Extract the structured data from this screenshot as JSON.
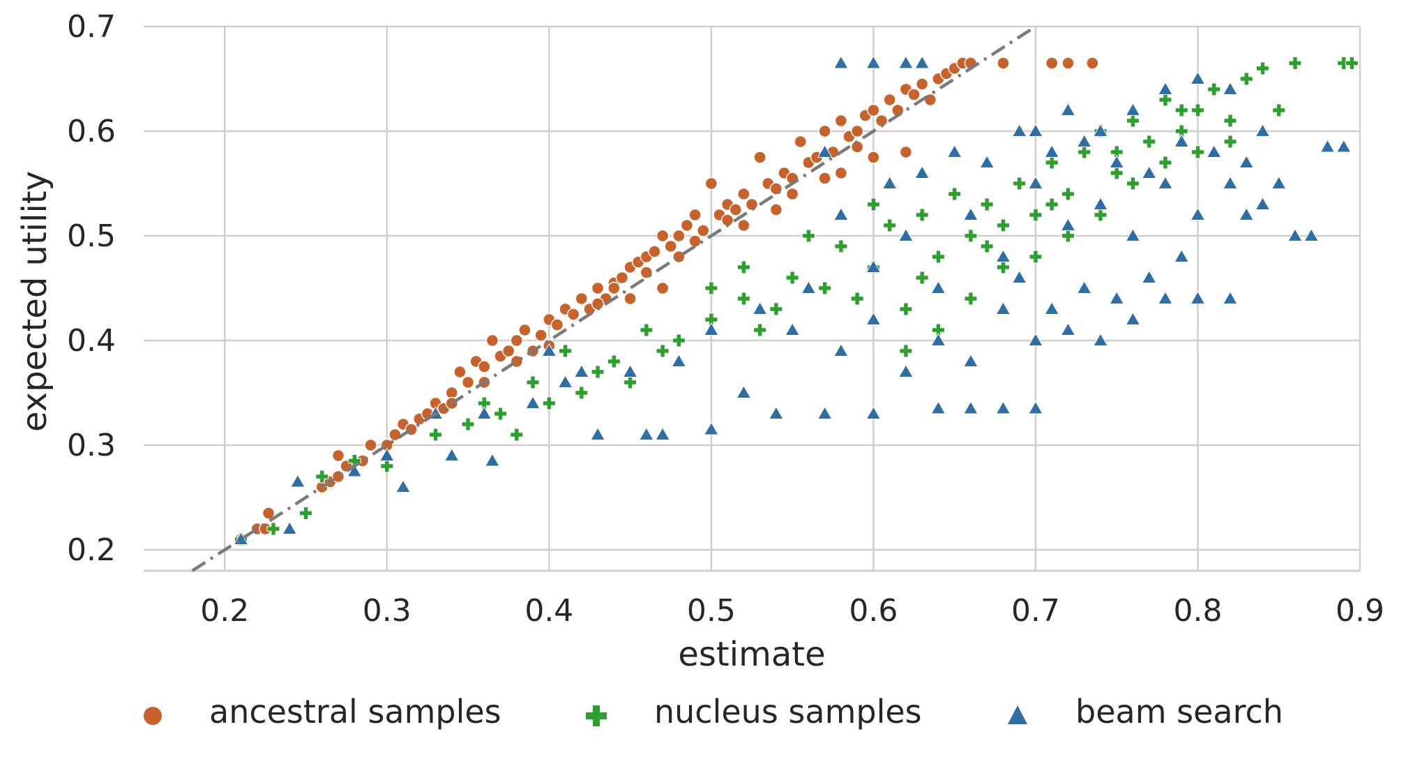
{
  "chart_data": {
    "type": "scatter",
    "title": "",
    "xlabel": "estimate",
    "ylabel": "expected utility",
    "xlim": [
      0.15,
      0.9
    ],
    "ylim": [
      0.18,
      0.7
    ],
    "xticks": [
      0.2,
      0.3,
      0.4,
      0.5,
      0.6,
      0.7,
      0.8,
      0.9
    ],
    "xtick_labels": [
      "0.2",
      "0.3",
      "0.4",
      "0.5",
      "0.6",
      "0.7",
      "0.8",
      "0.9"
    ],
    "yticks": [
      0.2,
      0.3,
      0.4,
      0.5,
      0.6,
      0.7
    ],
    "ytick_labels": [
      "0.2",
      "0.3",
      "0.4",
      "0.5",
      "0.6",
      "0.7"
    ],
    "grid": true,
    "legend_position": "bottom",
    "reference_line": {
      "style": "dash-dot",
      "x": [
        0.18,
        0.7
      ],
      "y": [
        0.18,
        0.7
      ]
    },
    "series": [
      {
        "name": "ancestral samples",
        "marker": "circle",
        "color": "#c8622a",
        "points": [
          [
            0.21,
            0.21
          ],
          [
            0.22,
            0.22
          ],
          [
            0.225,
            0.22
          ],
          [
            0.227,
            0.235
          ],
          [
            0.26,
            0.26
          ],
          [
            0.265,
            0.265
          ],
          [
            0.27,
            0.27
          ],
          [
            0.275,
            0.28
          ],
          [
            0.27,
            0.29
          ],
          [
            0.285,
            0.285
          ],
          [
            0.29,
            0.3
          ],
          [
            0.3,
            0.3
          ],
          [
            0.305,
            0.31
          ],
          [
            0.31,
            0.32
          ],
          [
            0.315,
            0.315
          ],
          [
            0.32,
            0.325
          ],
          [
            0.325,
            0.33
          ],
          [
            0.33,
            0.34
          ],
          [
            0.335,
            0.335
          ],
          [
            0.34,
            0.35
          ],
          [
            0.345,
            0.37
          ],
          [
            0.35,
            0.36
          ],
          [
            0.355,
            0.38
          ],
          [
            0.36,
            0.375
          ],
          [
            0.365,
            0.4
          ],
          [
            0.37,
            0.385
          ],
          [
            0.375,
            0.39
          ],
          [
            0.38,
            0.4
          ],
          [
            0.385,
            0.41
          ],
          [
            0.39,
            0.39
          ],
          [
            0.395,
            0.405
          ],
          [
            0.4,
            0.42
          ],
          [
            0.405,
            0.415
          ],
          [
            0.41,
            0.43
          ],
          [
            0.415,
            0.425
          ],
          [
            0.42,
            0.44
          ],
          [
            0.425,
            0.43
          ],
          [
            0.43,
            0.45
          ],
          [
            0.435,
            0.44
          ],
          [
            0.44,
            0.455
          ],
          [
            0.445,
            0.46
          ],
          [
            0.45,
            0.47
          ],
          [
            0.455,
            0.475
          ],
          [
            0.46,
            0.48
          ],
          [
            0.465,
            0.485
          ],
          [
            0.47,
            0.5
          ],
          [
            0.475,
            0.49
          ],
          [
            0.48,
            0.5
          ],
          [
            0.485,
            0.51
          ],
          [
            0.49,
            0.52
          ],
          [
            0.495,
            0.505
          ],
          [
            0.5,
            0.55
          ],
          [
            0.505,
            0.52
          ],
          [
            0.51,
            0.53
          ],
          [
            0.515,
            0.525
          ],
          [
            0.52,
            0.54
          ],
          [
            0.525,
            0.53
          ],
          [
            0.53,
            0.575
          ],
          [
            0.535,
            0.55
          ],
          [
            0.54,
            0.545
          ],
          [
            0.545,
            0.56
          ],
          [
            0.55,
            0.555
          ],
          [
            0.555,
            0.59
          ],
          [
            0.56,
            0.57
          ],
          [
            0.565,
            0.575
          ],
          [
            0.57,
            0.6
          ],
          [
            0.575,
            0.58
          ],
          [
            0.58,
            0.61
          ],
          [
            0.585,
            0.595
          ],
          [
            0.59,
            0.6
          ],
          [
            0.595,
            0.615
          ],
          [
            0.6,
            0.62
          ],
          [
            0.605,
            0.61
          ],
          [
            0.61,
            0.63
          ],
          [
            0.615,
            0.62
          ],
          [
            0.62,
            0.64
          ],
          [
            0.625,
            0.635
          ],
          [
            0.63,
            0.645
          ],
          [
            0.635,
            0.63
          ],
          [
            0.64,
            0.65
          ],
          [
            0.645,
            0.655
          ],
          [
            0.65,
            0.66
          ],
          [
            0.655,
            0.665
          ],
          [
            0.66,
            0.665
          ],
          [
            0.68,
            0.665
          ],
          [
            0.71,
            0.665
          ],
          [
            0.72,
            0.665
          ],
          [
            0.735,
            0.665
          ],
          [
            0.59,
            0.585
          ],
          [
            0.6,
            0.575
          ],
          [
            0.62,
            0.58
          ],
          [
            0.58,
            0.56
          ],
          [
            0.57,
            0.555
          ],
          [
            0.44,
            0.45
          ],
          [
            0.43,
            0.435
          ],
          [
            0.46,
            0.465
          ],
          [
            0.48,
            0.48
          ],
          [
            0.49,
            0.495
          ],
          [
            0.51,
            0.515
          ],
          [
            0.52,
            0.51
          ],
          [
            0.54,
            0.525
          ],
          [
            0.55,
            0.54
          ],
          [
            0.47,
            0.45
          ],
          [
            0.45,
            0.44
          ],
          [
            0.4,
            0.395
          ],
          [
            0.38,
            0.38
          ],
          [
            0.36,
            0.36
          ],
          [
            0.34,
            0.34
          ]
        ]
      },
      {
        "name": "nucleus samples",
        "marker": "plus",
        "color": "#2ca02c",
        "points": [
          [
            0.21,
            0.21
          ],
          [
            0.23,
            0.22
          ],
          [
            0.25,
            0.235
          ],
          [
            0.26,
            0.27
          ],
          [
            0.28,
            0.285
          ],
          [
            0.3,
            0.28
          ],
          [
            0.33,
            0.31
          ],
          [
            0.35,
            0.32
          ],
          [
            0.37,
            0.33
          ],
          [
            0.38,
            0.31
          ],
          [
            0.4,
            0.34
          ],
          [
            0.42,
            0.35
          ],
          [
            0.44,
            0.38
          ],
          [
            0.45,
            0.36
          ],
          [
            0.46,
            0.41
          ],
          [
            0.48,
            0.4
          ],
          [
            0.5,
            0.42
          ],
          [
            0.52,
            0.44
          ],
          [
            0.53,
            0.41
          ],
          [
            0.55,
            0.46
          ],
          [
            0.57,
            0.45
          ],
          [
            0.58,
            0.49
          ],
          [
            0.6,
            0.47
          ],
          [
            0.61,
            0.51
          ],
          [
            0.62,
            0.43
          ],
          [
            0.63,
            0.52
          ],
          [
            0.64,
            0.48
          ],
          [
            0.65,
            0.54
          ],
          [
            0.66,
            0.5
          ],
          [
            0.67,
            0.53
          ],
          [
            0.68,
            0.47
          ],
          [
            0.69,
            0.55
          ],
          [
            0.7,
            0.52
          ],
          [
            0.71,
            0.57
          ],
          [
            0.72,
            0.54
          ],
          [
            0.73,
            0.58
          ],
          [
            0.74,
            0.6
          ],
          [
            0.75,
            0.56
          ],
          [
            0.76,
            0.61
          ],
          [
            0.77,
            0.59
          ],
          [
            0.78,
            0.63
          ],
          [
            0.79,
            0.6
          ],
          [
            0.8,
            0.62
          ],
          [
            0.81,
            0.64
          ],
          [
            0.82,
            0.61
          ],
          [
            0.83,
            0.65
          ],
          [
            0.84,
            0.66
          ],
          [
            0.85,
            0.62
          ],
          [
            0.86,
            0.665
          ],
          [
            0.89,
            0.665
          ],
          [
            0.895,
            0.665
          ],
          [
            0.56,
            0.5
          ],
          [
            0.59,
            0.44
          ],
          [
            0.62,
            0.39
          ],
          [
            0.64,
            0.41
          ],
          [
            0.66,
            0.44
          ],
          [
            0.68,
            0.51
          ],
          [
            0.7,
            0.48
          ],
          [
            0.72,
            0.5
          ],
          [
            0.74,
            0.52
          ],
          [
            0.76,
            0.55
          ],
          [
            0.78,
            0.57
          ],
          [
            0.8,
            0.58
          ],
          [
            0.5,
            0.45
          ],
          [
            0.52,
            0.47
          ],
          [
            0.54,
            0.43
          ],
          [
            0.47,
            0.39
          ],
          [
            0.43,
            0.37
          ],
          [
            0.41,
            0.39
          ],
          [
            0.39,
            0.36
          ],
          [
            0.36,
            0.34
          ],
          [
            0.6,
            0.53
          ],
          [
            0.63,
            0.46
          ],
          [
            0.67,
            0.49
          ],
          [
            0.71,
            0.53
          ],
          [
            0.75,
            0.58
          ],
          [
            0.79,
            0.62
          ],
          [
            0.82,
            0.59
          ]
        ]
      },
      {
        "name": "beam search",
        "marker": "triangle",
        "color": "#2d6ea6",
        "points": [
          [
            0.21,
            0.21
          ],
          [
            0.24,
            0.22
          ],
          [
            0.245,
            0.265
          ],
          [
            0.28,
            0.275
          ],
          [
            0.3,
            0.29
          ],
          [
            0.31,
            0.26
          ],
          [
            0.34,
            0.29
          ],
          [
            0.365,
            0.285
          ],
          [
            0.39,
            0.34
          ],
          [
            0.41,
            0.36
          ],
          [
            0.43,
            0.31
          ],
          [
            0.46,
            0.31
          ],
          [
            0.47,
            0.31
          ],
          [
            0.5,
            0.315
          ],
          [
            0.52,
            0.35
          ],
          [
            0.54,
            0.33
          ],
          [
            0.57,
            0.33
          ],
          [
            0.6,
            0.33
          ],
          [
            0.64,
            0.335
          ],
          [
            0.66,
            0.335
          ],
          [
            0.68,
            0.335
          ],
          [
            0.7,
            0.335
          ],
          [
            0.55,
            0.41
          ],
          [
            0.58,
            0.39
          ],
          [
            0.6,
            0.42
          ],
          [
            0.62,
            0.37
          ],
          [
            0.64,
            0.4
          ],
          [
            0.66,
            0.38
          ],
          [
            0.68,
            0.43
          ],
          [
            0.7,
            0.4
          ],
          [
            0.72,
            0.41
          ],
          [
            0.74,
            0.4
          ],
          [
            0.76,
            0.42
          ],
          [
            0.78,
            0.44
          ],
          [
            0.8,
            0.44
          ],
          [
            0.82,
            0.44
          ],
          [
            0.6,
            0.47
          ],
          [
            0.62,
            0.5
          ],
          [
            0.64,
            0.45
          ],
          [
            0.66,
            0.52
          ],
          [
            0.68,
            0.48
          ],
          [
            0.7,
            0.55
          ],
          [
            0.72,
            0.51
          ],
          [
            0.74,
            0.53
          ],
          [
            0.76,
            0.5
          ],
          [
            0.78,
            0.55
          ],
          [
            0.8,
            0.52
          ],
          [
            0.82,
            0.55
          ],
          [
            0.84,
            0.53
          ],
          [
            0.86,
            0.5
          ],
          [
            0.87,
            0.5
          ],
          [
            0.58,
            0.665
          ],
          [
            0.6,
            0.665
          ],
          [
            0.62,
            0.665
          ],
          [
            0.63,
            0.665
          ],
          [
            0.7,
            0.6
          ],
          [
            0.72,
            0.62
          ],
          [
            0.74,
            0.6
          ],
          [
            0.76,
            0.62
          ],
          [
            0.78,
            0.64
          ],
          [
            0.8,
            0.65
          ],
          [
            0.82,
            0.64
          ],
          [
            0.84,
            0.6
          ],
          [
            0.88,
            0.585
          ],
          [
            0.89,
            0.585
          ],
          [
            0.83,
            0.57
          ],
          [
            0.81,
            0.58
          ],
          [
            0.79,
            0.59
          ],
          [
            0.65,
            0.58
          ],
          [
            0.67,
            0.57
          ],
          [
            0.69,
            0.6
          ],
          [
            0.71,
            0.58
          ],
          [
            0.73,
            0.59
          ],
          [
            0.75,
            0.57
          ],
          [
            0.77,
            0.56
          ],
          [
            0.56,
            0.45
          ],
          [
            0.58,
            0.52
          ],
          [
            0.61,
            0.55
          ],
          [
            0.63,
            0.56
          ],
          [
            0.57,
            0.58
          ],
          [
            0.53,
            0.43
          ],
          [
            0.5,
            0.41
          ],
          [
            0.48,
            0.38
          ],
          [
            0.45,
            0.37
          ],
          [
            0.42,
            0.37
          ],
          [
            0.4,
            0.39
          ],
          [
            0.36,
            0.33
          ],
          [
            0.33,
            0.33
          ],
          [
            0.85,
            0.55
          ],
          [
            0.83,
            0.52
          ],
          [
            0.79,
            0.48
          ],
          [
            0.77,
            0.46
          ],
          [
            0.75,
            0.44
          ],
          [
            0.73,
            0.45
          ],
          [
            0.71,
            0.43
          ],
          [
            0.69,
            0.46
          ]
        ]
      }
    ]
  }
}
